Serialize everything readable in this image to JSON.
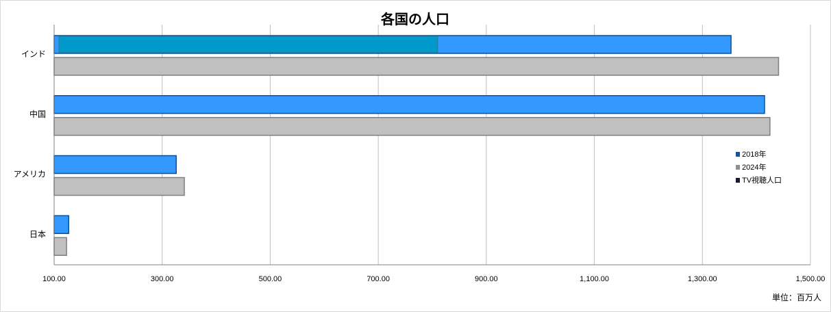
{
  "chart_data": {
    "type": "bar",
    "orientation": "horizontal",
    "title": "各国の人口",
    "unit_label": "単位：百万人",
    "categories": [
      "インド",
      "中国",
      "アメリカ",
      "日本"
    ],
    "series": [
      {
        "name": "2018年",
        "values": [
          1353,
          1415,
          326,
          127
        ],
        "color": "#3399ff"
      },
      {
        "name": "2024年",
        "values": [
          1441,
          1425,
          341,
          123
        ],
        "color": "#c0c0c0"
      },
      {
        "name": "TV視聴人口",
        "values": [
          810,
          null,
          null,
          null
        ],
        "color": "#0099cc"
      }
    ],
    "legend_colors": [
      "#1f4e9c",
      "#909090",
      "#1a1a2e"
    ],
    "xlim": [
      100,
      1500
    ],
    "x_ticks": [
      100,
      300,
      500,
      700,
      900,
      1100,
      1300,
      1500
    ],
    "x_tick_labels": [
      "100.00",
      "300.00",
      "500.00",
      "700.00",
      "900.00",
      "1,100.00",
      "1,300.00",
      "1,500.00"
    ],
    "grid": "vertical",
    "legend_position": "right"
  }
}
